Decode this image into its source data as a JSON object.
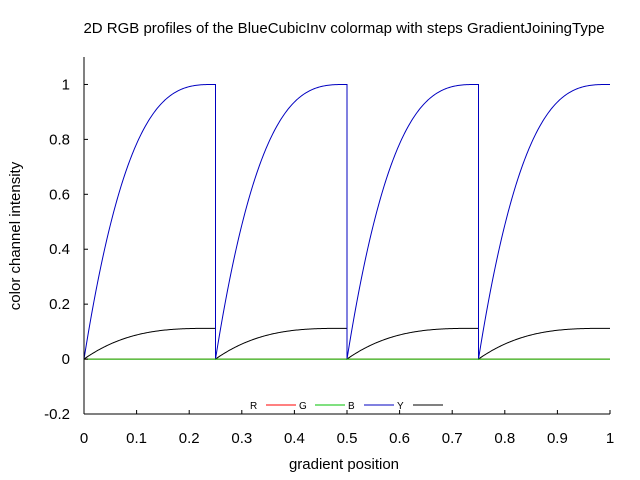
{
  "chart_data": {
    "type": "line",
    "title": "2D RGB profiles of the BlueCubicInv colormap with steps GradientJoiningType",
    "xlabel": "gradient position",
    "ylabel": "color channel intensity",
    "xlim": [
      0,
      1
    ],
    "ylim": [
      -0.2,
      1.1
    ],
    "xticks": [
      "0",
      "0.1",
      "0.2",
      "0.3",
      "0.4",
      "0.5",
      "0.6",
      "0.7",
      "0.8",
      "0.9",
      "1"
    ],
    "yticks": [
      "-0.2",
      "0",
      "0.2",
      "0.4",
      "0.6",
      "0.8",
      "1"
    ],
    "grid": false,
    "legend_position": "bottom-center",
    "segments": [
      0,
      0.25,
      0.5,
      0.75,
      1
    ],
    "series": [
      {
        "name": "R",
        "color": "#ff0000",
        "x": [
          0,
          0.25,
          0.5,
          0.75,
          1
        ],
        "values": [
          0,
          0,
          0,
          0,
          0
        ]
      },
      {
        "name": "G",
        "color": "#00c000",
        "x": [
          0,
          0.25,
          0.5,
          0.75,
          1
        ],
        "values": [
          0,
          0,
          0,
          0,
          0
        ]
      },
      {
        "name": "B",
        "color": "#0000c0",
        "shape": "cubic-inverse, restarting each segment",
        "x": [
          0,
          0.025,
          0.05,
          0.1,
          0.15,
          0.2,
          0.25,
          0.25,
          0.275,
          0.3,
          0.35,
          0.4,
          0.45,
          0.5,
          0.5,
          0.525,
          0.55,
          0.6,
          0.65,
          0.7,
          0.75,
          0.75,
          0.775,
          0.8,
          0.85,
          0.9,
          0.95,
          1
        ],
        "values": [
          0,
          0.27,
          0.49,
          0.78,
          0.94,
          0.99,
          1,
          0,
          0.27,
          0.49,
          0.78,
          0.94,
          0.99,
          1,
          0,
          0.27,
          0.49,
          0.78,
          0.94,
          0.99,
          1,
          0,
          0.27,
          0.49,
          0.78,
          0.94,
          0.99,
          1
        ]
      },
      {
        "name": "Y",
        "color": "#000000",
        "shape": "cubic-inverse, restarting each segment",
        "x": [
          0,
          0.025,
          0.05,
          0.1,
          0.15,
          0.2,
          0.25,
          0.25,
          0.275,
          0.3,
          0.35,
          0.4,
          0.45,
          0.5,
          0.5,
          0.525,
          0.55,
          0.6,
          0.65,
          0.7,
          0.75,
          0.75,
          0.775,
          0.8,
          0.85,
          0.9,
          0.95,
          1
        ],
        "values": [
          0,
          0.03,
          0.055,
          0.087,
          0.105,
          0.111,
          0.112,
          0,
          0.03,
          0.055,
          0.087,
          0.105,
          0.111,
          0.112,
          0,
          0.03,
          0.055,
          0.087,
          0.105,
          0.111,
          0.112,
          0,
          0.03,
          0.055,
          0.087,
          0.105,
          0.111,
          0.112
        ]
      }
    ]
  }
}
